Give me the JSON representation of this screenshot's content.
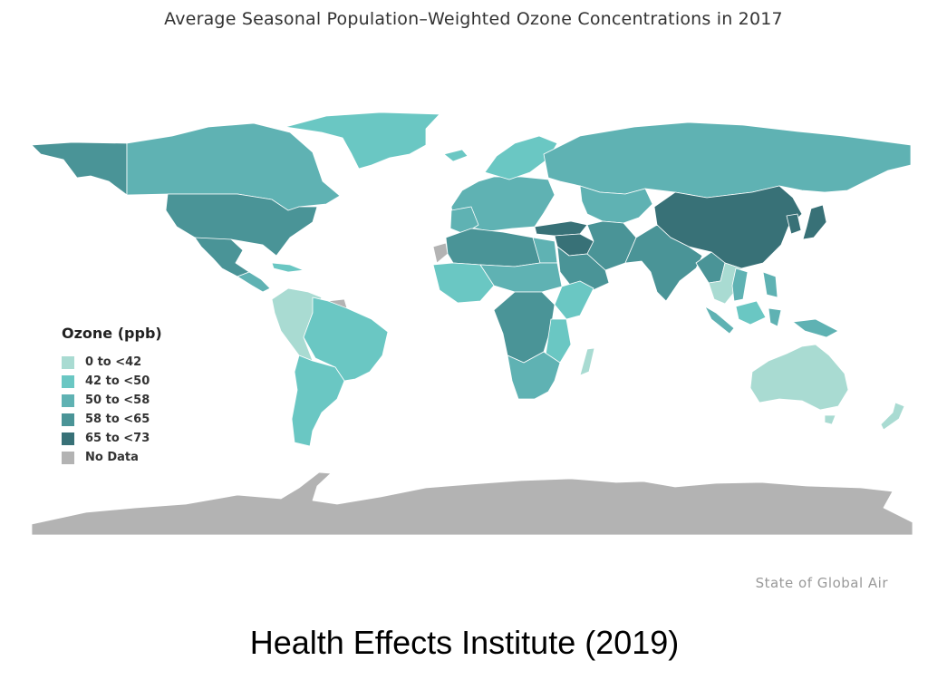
{
  "title": "Average Seasonal Population–Weighted Ozone Concentrations in 2017",
  "legend": {
    "title": "Ozone (ppb)",
    "items": [
      {
        "label": "0 to <42",
        "color": "#a9dbd2"
      },
      {
        "label": "42 to <50",
        "color": "#6ac7c3"
      },
      {
        "label": "50 to <58",
        "color": "#5fb2b3"
      },
      {
        "label": "58 to <65",
        "color": "#4a9497"
      },
      {
        "label": "65 to <73",
        "color": "#387177"
      },
      {
        "label": "No Data",
        "color": "#b3b3b3"
      }
    ]
  },
  "source": "State of Global Air",
  "caption": "Health Effects Institute (2019)"
}
